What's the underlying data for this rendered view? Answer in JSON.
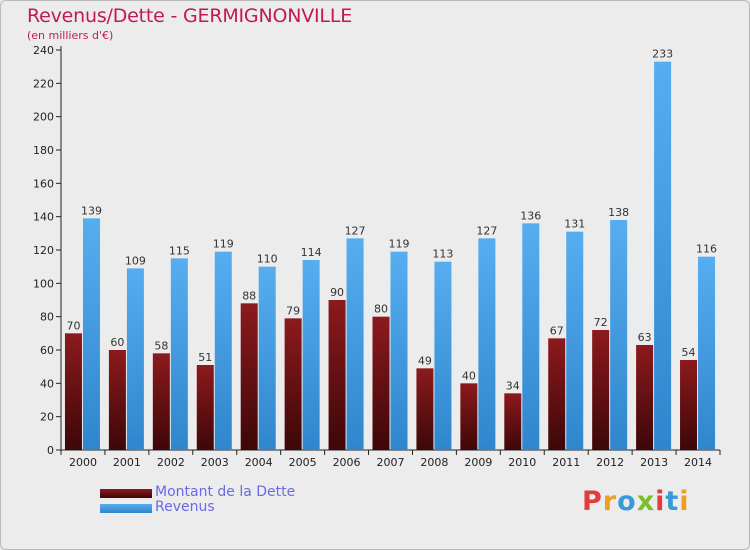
{
  "header": {
    "title": "Revenus/Dette - GERMIGNONVILLE",
    "subtitle": "(en milliers d'€)"
  },
  "legend": {
    "debt_label": "Montant de la Dette",
    "revenue_label": "Revenus"
  },
  "logo": {
    "letters": [
      "P",
      "r",
      "o",
      "x",
      "i",
      "t",
      "i"
    ],
    "colors": [
      "#e23c3c",
      "#f0a020",
      "#3a9ad9",
      "#7bbf2a",
      "#e23c3c",
      "#3a9ad9",
      "#f0a020"
    ]
  },
  "colors": {
    "debt": "#7a1518",
    "revenue": "#4da3e6",
    "axis": "#222222",
    "grid": "#555555"
  },
  "chart_data": {
    "type": "bar",
    "title": "Revenus/Dette - GERMIGNONVILLE",
    "subtitle": "(en milliers d'€)",
    "categories": [
      "2000",
      "2001",
      "2002",
      "2003",
      "2004",
      "2005",
      "2006",
      "2007",
      "2008",
      "2009",
      "2010",
      "2011",
      "2012",
      "2013",
      "2014"
    ],
    "series": [
      {
        "name": "Montant de la Dette",
        "values": [
          70,
          60,
          58,
          51,
          88,
          79,
          90,
          80,
          49,
          40,
          34,
          67,
          72,
          63,
          54
        ]
      },
      {
        "name": "Revenus",
        "values": [
          139,
          109,
          115,
          119,
          110,
          114,
          127,
          119,
          113,
          127,
          136,
          131,
          138,
          233,
          116
        ]
      }
    ],
    "ylim": [
      0,
      240
    ],
    "yticks": [
      0,
      20,
      40,
      60,
      80,
      100,
      120,
      140,
      160,
      180,
      200,
      220,
      240
    ],
    "grid": false,
    "legend_position": "bottom-left"
  }
}
